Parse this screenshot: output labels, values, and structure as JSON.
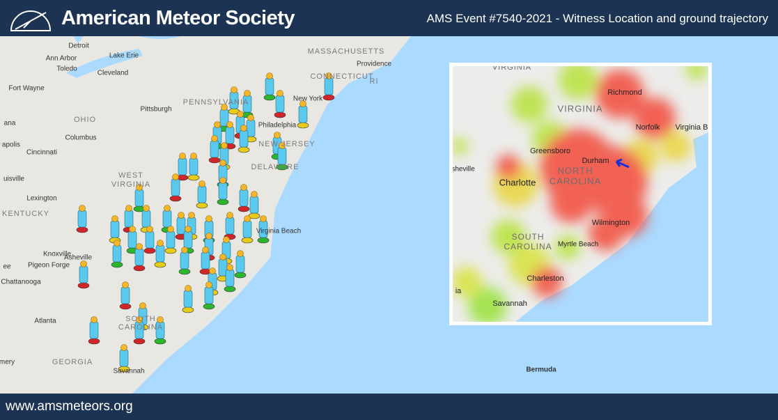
{
  "header": {
    "title": "American Meteor Society",
    "event": "AMS Event #7540-2021  - Witness Location and ground trajectory"
  },
  "footer": {
    "url": "www.amsmeteors.org"
  },
  "map": {
    "labels": [
      "Detroit",
      "Ann Arbor",
      "Toledo",
      "Lake Erie",
      "Cleveland",
      "Fort Wayne",
      "Pittsburgh",
      "OHIO",
      "Columbus",
      "PENNSYLVANIA",
      "MASSACHUSETTS",
      "Providence",
      "CONNECTICUT",
      "RI",
      "New York",
      "Philadelphia",
      "NEW JERSEY",
      "DELAWARE",
      "Cincinnati",
      "apolis",
      "WEST",
      "VIRGINIA",
      "uisville",
      "Lexington",
      "KENTUCKY",
      "Knoxville",
      "Asheville",
      "Pigeon Forge",
      "Chattanooga",
      "Atlanta",
      "GEORGIA",
      "SOUTH",
      "CAROLINA",
      "Virginia Beach",
      "Savannah",
      "Bermuda",
      "ana",
      "ee",
      "mery"
    ]
  },
  "inset": {
    "labels": [
      "VIRGINIA",
      "Richmond",
      "VIRGINIA",
      "Norfolk",
      "Virginia B",
      "Greensboro",
      "Durham",
      "NORTH",
      "CAROLINA",
      "Charlotte",
      "sheville",
      "Wilmington",
      "SOUTH",
      "CAROLINA",
      "Myrtle Beach",
      "Charleston",
      "Savannah",
      "ia"
    ]
  }
}
